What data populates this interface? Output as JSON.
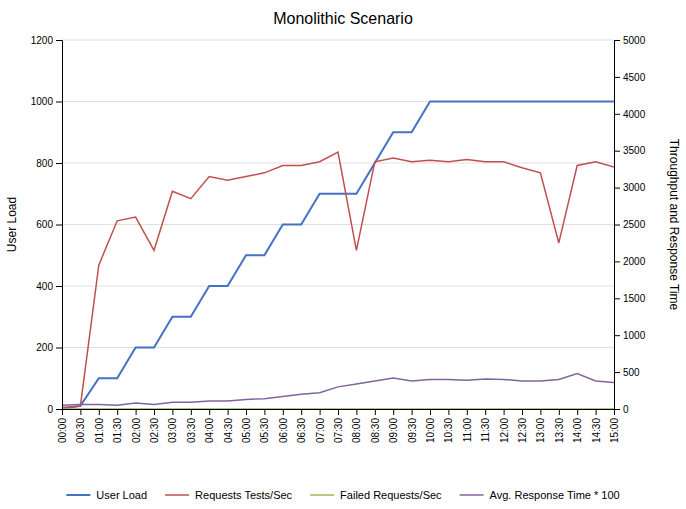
{
  "chart_data": {
    "type": "line",
    "title": "Monolithic Scenario",
    "ylabel": "User Load",
    "y2label": "Throughput and Response Time",
    "categories": [
      "00:00",
      "00:30",
      "01:00",
      "01:30",
      "02:00",
      "02:30",
      "03:00",
      "03:30",
      "04:00",
      "04:30",
      "05:00",
      "05:30",
      "06:00",
      "06:30",
      "07:00",
      "07:30",
      "08:00",
      "08:30",
      "09:00",
      "09:30",
      "10:00",
      "10:30",
      "11:00",
      "11:30",
      "12:00",
      "12:30",
      "13:00",
      "13:30",
      "14:00",
      "14:30",
      "15:00"
    ],
    "series": [
      {
        "name": "User Load",
        "color": "#4472C4",
        "values": [
          0,
          10,
          100,
          100,
          200,
          200,
          300,
          300,
          400,
          400,
          500,
          500,
          600,
          600,
          700,
          700,
          700,
          800,
          900,
          900,
          1000,
          1000,
          1000,
          1000,
          1000,
          1000,
          1000,
          1000,
          1000,
          1000,
          1000
        ]
      },
      {
        "name": "Requests Tests/Sec",
        "color": "#C0504D",
        "axis": "y2",
        "values": [
          20,
          40,
          1950,
          2550,
          2600,
          2150,
          2950,
          2850,
          3150,
          3100,
          3150,
          3200,
          3300,
          3300,
          3350,
          3480,
          2150,
          3350,
          3400,
          3350,
          3370,
          3350,
          3380,
          3350,
          3350,
          3270,
          3200,
          2250,
          3300,
          3350,
          3280
        ]
      },
      {
        "name": "Failed Requests/Sec",
        "color": "#9BBB59",
        "axis": "y2",
        "values": [
          0,
          0,
          0,
          0,
          0,
          0,
          0,
          0,
          0,
          0,
          0,
          0,
          0,
          0,
          0,
          0,
          0,
          0,
          0,
          0,
          0,
          0,
          0,
          0,
          0,
          0,
          0,
          0,
          0,
          0,
          0
        ]
      },
      {
        "name": "Avg. Response Time * 100",
        "color": "#8064A2",
        "axis": "y2",
        "values": [
          50,
          60,
          60,
          50,
          80,
          60,
          90,
          90,
          110,
          110,
          130,
          140,
          170,
          200,
          220,
          300,
          340,
          380,
          420,
          380,
          400,
          400,
          390,
          405,
          400,
          380,
          380,
          400,
          480,
          380,
          360
        ]
      }
    ],
    "ylim": [
      0,
      1200
    ],
    "yticks": [
      0,
      200,
      400,
      600,
      800,
      1000,
      1200
    ],
    "y2lim": [
      0,
      5000
    ],
    "y2ticks": [
      0,
      500,
      1000,
      1500,
      2000,
      2500,
      3000,
      3500,
      4000,
      4500,
      5000
    ],
    "grid": true,
    "legend": "bottom"
  }
}
